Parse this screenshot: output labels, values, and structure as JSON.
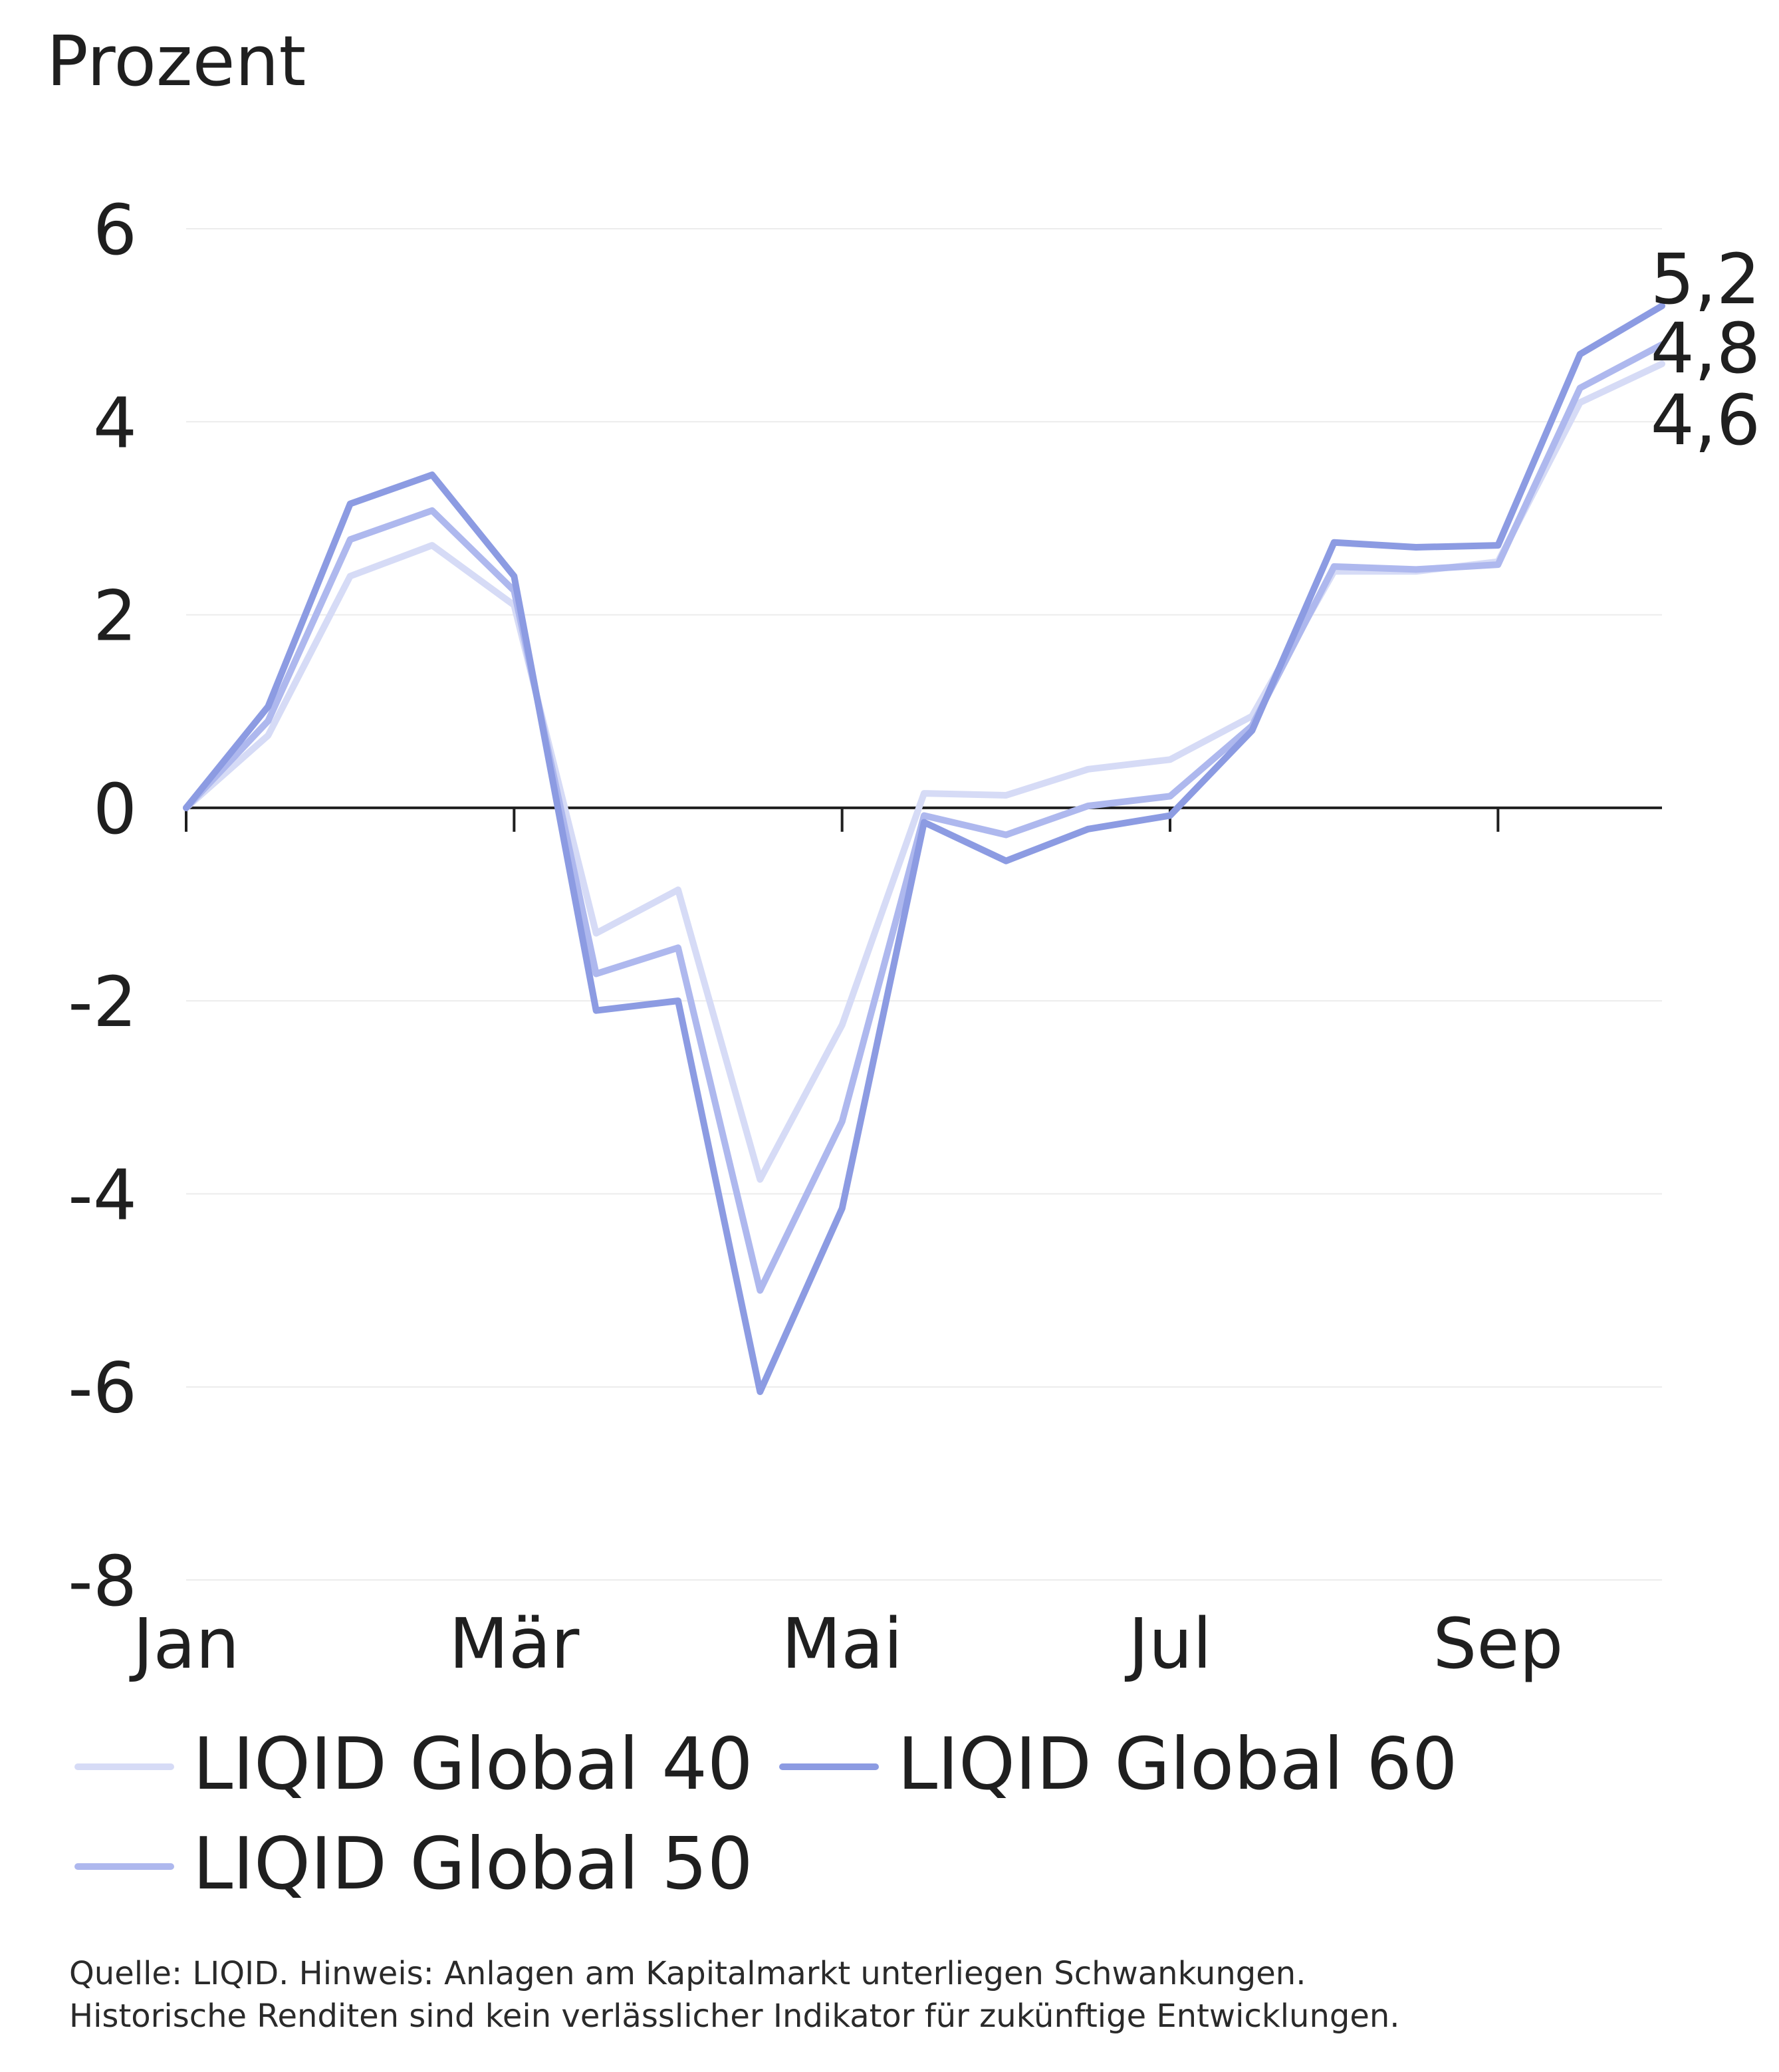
{
  "chart_data": {
    "type": "line",
    "ylabel": "Prozent",
    "ylim": [
      -8,
      6
    ],
    "yticks": [
      6,
      4,
      2,
      0,
      -2,
      -4,
      -6,
      -8
    ],
    "ytick_labels": [
      "6",
      "4",
      "2",
      "0",
      "-2",
      "-4",
      "-6",
      "-8"
    ],
    "xticks": [
      "Jan",
      "Mär",
      "Mai",
      "Jul",
      "Sep"
    ],
    "xtick_positions": [
      0,
      2,
      4,
      6,
      8
    ],
    "grid": true,
    "series": [
      {
        "name": "LIQID Global 40",
        "color": "#d6dbf6",
        "end_label": "4,6",
        "x": [
          0,
          0.5,
          1,
          1.5,
          2,
          2.5,
          3,
          3.5,
          4,
          4.5,
          5,
          5.5,
          6,
          6.5,
          7,
          7.5,
          8,
          8.5,
          9
        ],
        "values": [
          0,
          0.75,
          2.4,
          2.72,
          2.1,
          -1.3,
          -0.85,
          -3.85,
          -2.25,
          0.15,
          0.13,
          0.4,
          0.5,
          0.95,
          2.45,
          2.45,
          2.55,
          4.2,
          4.6
        ]
      },
      {
        "name": "LIQID Global 60",
        "color": "#8c9be2",
        "end_label": "5,2",
        "x": [
          0,
          0.5,
          1,
          1.5,
          2,
          2.5,
          3,
          3.5,
          4,
          4.5,
          5,
          5.5,
          6,
          6.5,
          7,
          7.5,
          8,
          8.5,
          9
        ],
        "values": [
          0,
          1.05,
          3.15,
          3.45,
          2.4,
          -2.1,
          -2.0,
          -6.05,
          -4.15,
          -0.15,
          -0.55,
          -0.22,
          -0.08,
          0.8,
          2.75,
          2.7,
          2.72,
          4.7,
          5.2
        ]
      },
      {
        "name": "LIQID Global 50",
        "color": "#aeb8ee",
        "end_label": "4,8",
        "x": [
          0,
          0.5,
          1,
          1.5,
          2,
          2.5,
          3,
          3.5,
          4,
          4.5,
          5,
          5.5,
          6,
          6.5,
          7,
          7.5,
          8,
          8.5,
          9
        ],
        "values": [
          0,
          0.9,
          2.78,
          3.08,
          2.25,
          -1.72,
          -1.45,
          -5.0,
          -3.25,
          -0.08,
          -0.28,
          0.02,
          0.12,
          0.85,
          2.5,
          2.47,
          2.52,
          4.35,
          4.8
        ]
      }
    ]
  },
  "source": {
    "line1": "Quelle: LIQID. Hinweis: Anlagen am Kapitalmarkt unterliegen Schwankungen.",
    "line2": "Historische Renditen sind kein verlässlicher Indikator für zukünftige Entwicklungen."
  }
}
